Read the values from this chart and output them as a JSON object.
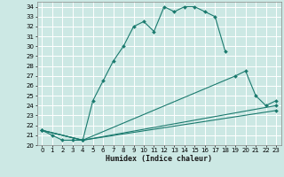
{
  "xlabel": "Humidex (Indice chaleur)",
  "background_color": "#cce8e4",
  "grid_color": "#ffffff",
  "line_color": "#1a7a6e",
  "xlim": [
    -0.5,
    23.5
  ],
  "ylim": [
    20,
    34.5
  ],
  "yticks": [
    20,
    21,
    22,
    23,
    24,
    25,
    26,
    27,
    28,
    29,
    30,
    31,
    32,
    33,
    34
  ],
  "xticks": [
    0,
    1,
    2,
    3,
    4,
    5,
    6,
    7,
    8,
    9,
    10,
    11,
    12,
    13,
    14,
    15,
    16,
    17,
    18,
    19,
    20,
    21,
    22,
    23
  ],
  "series": [
    {
      "x": [
        0,
        1,
        2,
        3,
        4,
        5,
        6,
        7,
        8,
        9,
        10,
        11,
        12,
        13,
        14,
        15,
        16,
        17,
        18
      ],
      "y": [
        21.5,
        21.0,
        20.5,
        20.5,
        20.5,
        24.5,
        26.5,
        28.5,
        30.0,
        32.0,
        32.5,
        31.5,
        34.0,
        33.5,
        34.0,
        34.0,
        33.5,
        33.0,
        29.5
      ]
    },
    {
      "x": [
        0,
        4,
        19,
        20,
        21,
        22,
        23
      ],
      "y": [
        21.5,
        20.5,
        27.0,
        27.5,
        25.0,
        24.0,
        24.5
      ]
    },
    {
      "x": [
        0,
        4,
        23
      ],
      "y": [
        21.5,
        20.5,
        24.0
      ]
    },
    {
      "x": [
        0,
        4,
        23
      ],
      "y": [
        21.5,
        20.5,
        23.5
      ]
    }
  ]
}
